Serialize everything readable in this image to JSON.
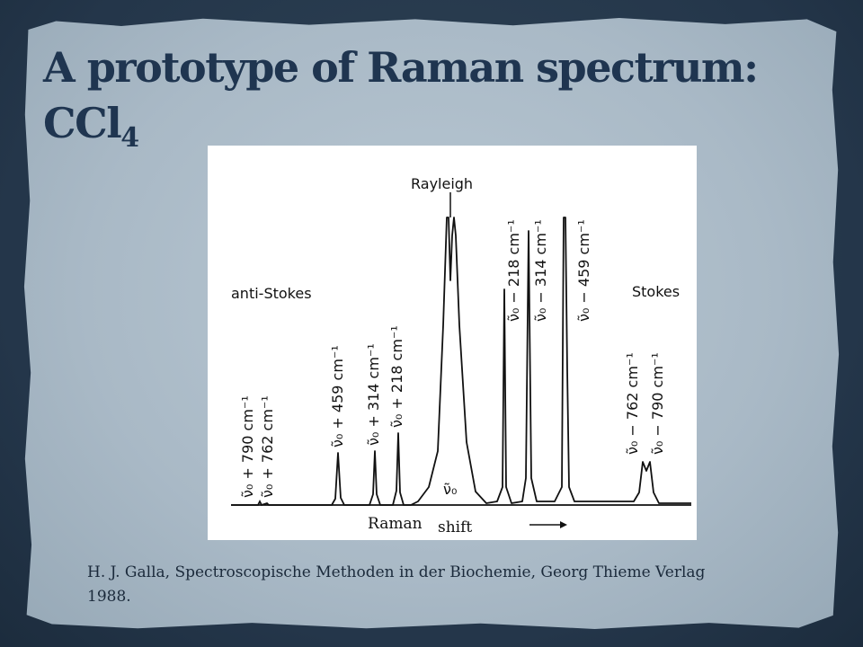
{
  "slide": {
    "title_main": "A prototype of Raman spectrum: CCl",
    "title_subscript": "4",
    "citation": "H. J. Galla, Spectroscopische Methoden in der Biochemie, Georg Thieme Verlag 1988."
  },
  "figure": {
    "labels": {
      "rayleigh": "Rayleigh",
      "anti_stokes": "anti-Stokes",
      "stokes": "Stokes",
      "nu0": "ν̃₀",
      "raman": "Raman",
      "shift": "shift",
      "arrow_icon": "right-arrow-icon"
    },
    "peak_labels": [
      "ν̃₀ + 790 cm⁻¹",
      "ν̃₀ + 762 cm⁻¹",
      "ν̃₀ + 459 cm⁻¹",
      "ν̃₀ + 314 cm⁻¹",
      "ν̃₀ + 218 cm⁻¹",
      "ν̃₀ − 218 cm⁻¹",
      "ν̃₀ − 314 cm⁻¹",
      "ν̃₀ − 459 cm⁻¹",
      "ν̃₀ − 762 cm⁻¹",
      "ν̃₀ − 790 cm⁻¹"
    ]
  }
}
